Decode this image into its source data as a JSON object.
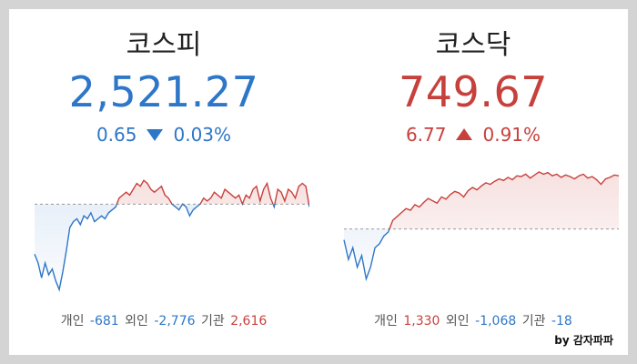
{
  "watermark": "by 감자파파",
  "colors": {
    "up": "#c7413c",
    "down": "#2e76c8"
  },
  "markets": [
    {
      "name": "코스피",
      "value": "2,521.27",
      "change": "0.65",
      "change_pct": "0.03%",
      "direction": "down",
      "investors": {
        "individual_label": "개인",
        "individual": "-681",
        "foreign_label": "외인",
        "foreign": "-2,776",
        "institution_label": "기관",
        "institution": "2,616"
      },
      "chart_data": {
        "type": "line",
        "prev_close": 2521.92,
        "ylim": [
          2490,
          2535
        ],
        "values": [
          2505,
          2502,
          2497,
          2502,
          2498,
          2500,
          2496,
          2493,
          2499,
          2506,
          2514,
          2516,
          2517,
          2515,
          2518,
          2517,
          2519,
          2516,
          2517,
          2518,
          2517,
          2519,
          2520,
          2521,
          2524,
          2525,
          2526,
          2525,
          2527,
          2529,
          2528,
          2530,
          2529,
          2527,
          2526,
          2527,
          2528,
          2525,
          2524,
          2522,
          2521,
          2520,
          2522,
          2521,
          2518,
          2520,
          2521,
          2522,
          2524,
          2523,
          2524,
          2526,
          2525,
          2524,
          2527,
          2526,
          2525,
          2524,
          2525,
          2522,
          2525,
          2524,
          2527,
          2528,
          2523,
          2527,
          2529,
          2524,
          2521,
          2527,
          2526,
          2523,
          2527,
          2526,
          2524,
          2528,
          2529,
          2528,
          2521
        ]
      }
    },
    {
      "name": "코스닥",
      "value": "749.67",
      "change": "6.77",
      "change_pct": "0.91%",
      "direction": "up",
      "investors": {
        "individual_label": "개인",
        "individual": "1,330",
        "foreign_label": "외인",
        "foreign": "-1,068",
        "institution_label": "기관",
        "institution": "-18"
      },
      "chart_data": {
        "type": "line",
        "prev_close": 742.9,
        "ylim": [
          734,
          751
        ],
        "values": [
          741.5,
          739,
          740.5,
          738,
          739.5,
          736.5,
          738,
          740.5,
          741,
          742,
          742.5,
          744,
          744.5,
          745,
          745.5,
          745.3,
          746,
          745.7,
          746.3,
          746.8,
          746.5,
          746.2,
          747,
          746.7,
          747.3,
          747.7,
          747.5,
          747,
          747.8,
          748.2,
          747.9,
          748.4,
          748.8,
          748.6,
          749,
          749.3,
          749.1,
          749.5,
          749.2,
          749.7,
          749.6,
          749.9,
          749.4,
          749.8,
          750.2,
          749.9,
          750.1,
          749.7,
          749.9,
          749.5,
          749.8,
          749.6,
          749.3,
          749.7,
          749.9,
          749.4,
          749.6,
          749.2,
          748.6,
          749.3,
          749.5,
          749.8,
          749.7
        ]
      }
    }
  ]
}
